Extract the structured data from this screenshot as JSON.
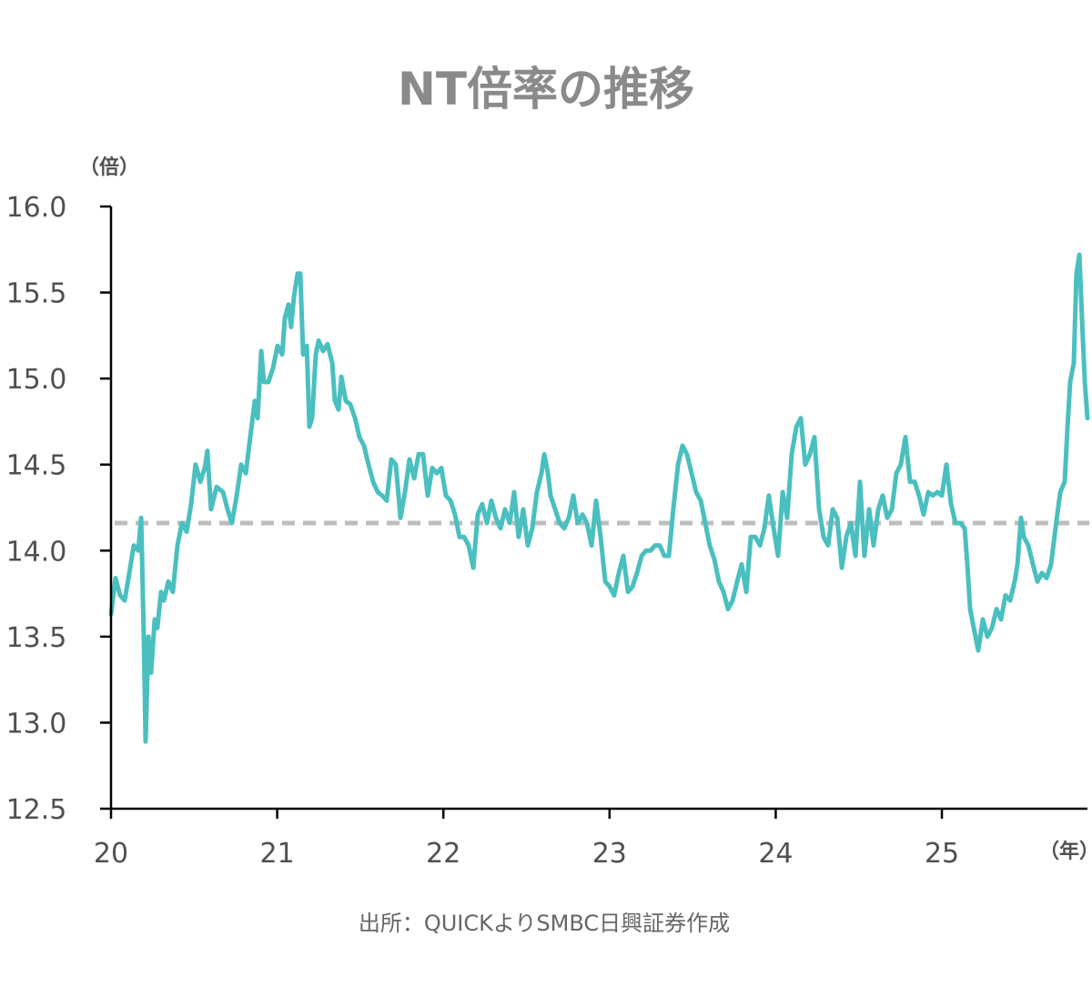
{
  "chart_data": {
    "type": "line",
    "title": "NT倍率の推移",
    "ylabel": "（倍）",
    "xlabel": "（年）",
    "source": "出所：QUICKよりSMBC日興証券作成",
    "ylim": [
      12.5,
      16.0
    ],
    "xlim": [
      20,
      25.876
    ],
    "yticks": [
      "12.5",
      "13.0",
      "13.5",
      "14.0",
      "14.5",
      "15.0",
      "15.5",
      "16.0"
    ],
    "xticks": [
      "20",
      "21",
      "22",
      "23",
      "24",
      "25"
    ],
    "grid": false,
    "reference_line": {
      "value": 14.16,
      "style": "dashed"
    },
    "colors": {
      "line": "#4bbfbf",
      "reference": "#bdbdbd",
      "axis": "#000000"
    },
    "series": [
      {
        "name": "NT倍率",
        "points": [
          [
            20.0,
            13.63
          ],
          [
            20.027,
            13.84
          ],
          [
            20.055,
            13.74
          ],
          [
            20.082,
            13.71
          ],
          [
            20.11,
            13.87
          ],
          [
            20.137,
            14.03
          ],
          [
            20.164,
            14.0
          ],
          [
            20.181,
            14.19
          ],
          [
            20.197,
            13.5
          ],
          [
            20.208,
            12.89
          ],
          [
            20.225,
            13.5
          ],
          [
            20.241,
            13.29
          ],
          [
            20.263,
            13.6
          ],
          [
            20.279,
            13.55
          ],
          [
            20.301,
            13.76
          ],
          [
            20.318,
            13.71
          ],
          [
            20.345,
            13.82
          ],
          [
            20.372,
            13.76
          ],
          [
            20.4,
            14.03
          ],
          [
            20.427,
            14.16
          ],
          [
            20.455,
            14.11
          ],
          [
            20.482,
            14.27
          ],
          [
            20.509,
            14.5
          ],
          [
            20.537,
            14.4
          ],
          [
            20.564,
            14.48
          ],
          [
            20.58,
            14.58
          ],
          [
            20.602,
            14.24
          ],
          [
            20.635,
            14.37
          ],
          [
            20.674,
            14.34
          ],
          [
            20.701,
            14.24
          ],
          [
            20.728,
            14.16
          ],
          [
            20.756,
            14.32
          ],
          [
            20.783,
            14.5
          ],
          [
            20.811,
            14.45
          ],
          [
            20.838,
            14.66
          ],
          [
            20.865,
            14.87
          ],
          [
            20.882,
            14.77
          ],
          [
            20.904,
            15.16
          ],
          [
            20.92,
            14.98
          ],
          [
            20.947,
            14.98
          ],
          [
            20.975,
            15.06
          ],
          [
            21.002,
            15.19
          ],
          [
            21.03,
            15.14
          ],
          [
            21.046,
            15.35
          ],
          [
            21.068,
            15.43
          ],
          [
            21.084,
            15.3
          ],
          [
            21.101,
            15.48
          ],
          [
            21.123,
            15.61
          ],
          [
            21.139,
            15.61
          ],
          [
            21.156,
            15.14
          ],
          [
            21.178,
            15.19
          ],
          [
            21.194,
            14.72
          ],
          [
            21.21,
            14.77
          ],
          [
            21.232,
            15.14
          ],
          [
            21.249,
            15.22
          ],
          [
            21.276,
            15.16
          ],
          [
            21.303,
            15.2
          ],
          [
            21.331,
            15.09
          ],
          [
            21.347,
            14.87
          ],
          [
            21.369,
            14.82
          ],
          [
            21.386,
            15.01
          ],
          [
            21.413,
            14.87
          ],
          [
            21.44,
            14.85
          ],
          [
            21.468,
            14.77
          ],
          [
            21.495,
            14.66
          ],
          [
            21.522,
            14.61
          ],
          [
            21.55,
            14.5
          ],
          [
            21.577,
            14.4
          ],
          [
            21.605,
            14.34
          ],
          [
            21.632,
            14.32
          ],
          [
            21.659,
            14.29
          ],
          [
            21.687,
            14.53
          ],
          [
            21.714,
            14.5
          ],
          [
            21.742,
            14.19
          ],
          [
            21.769,
            14.34
          ],
          [
            21.796,
            14.53
          ],
          [
            21.824,
            14.42
          ],
          [
            21.851,
            14.56
          ],
          [
            21.878,
            14.56
          ],
          [
            21.906,
            14.32
          ],
          [
            21.933,
            14.48
          ],
          [
            21.961,
            14.45
          ],
          [
            21.988,
            14.48
          ],
          [
            22.015,
            14.32
          ],
          [
            22.043,
            14.29
          ],
          [
            22.07,
            14.21
          ],
          [
            22.097,
            14.08
          ],
          [
            22.125,
            14.08
          ],
          [
            22.152,
            14.03
          ],
          [
            22.18,
            13.9
          ],
          [
            22.207,
            14.21
          ],
          [
            22.234,
            14.27
          ],
          [
            22.262,
            14.16
          ],
          [
            22.289,
            14.29
          ],
          [
            22.316,
            14.19
          ],
          [
            22.344,
            14.13
          ],
          [
            22.371,
            14.24
          ],
          [
            22.399,
            14.16
          ],
          [
            22.426,
            14.34
          ],
          [
            22.453,
            14.08
          ],
          [
            22.481,
            14.24
          ],
          [
            22.508,
            14.03
          ],
          [
            22.535,
            14.13
          ],
          [
            22.563,
            14.34
          ],
          [
            22.59,
            14.45
          ],
          [
            22.607,
            14.56
          ],
          [
            22.629,
            14.45
          ],
          [
            22.645,
            14.32
          ],
          [
            22.673,
            14.24
          ],
          [
            22.7,
            14.16
          ],
          [
            22.727,
            14.13
          ],
          [
            22.755,
            14.19
          ],
          [
            22.782,
            14.32
          ],
          [
            22.809,
            14.16
          ],
          [
            22.837,
            14.21
          ],
          [
            22.864,
            14.16
          ],
          [
            22.892,
            14.03
          ],
          [
            22.919,
            14.29
          ],
          [
            22.946,
            14.08
          ],
          [
            22.974,
            13.82
          ],
          [
            23.001,
            13.79
          ],
          [
            23.028,
            13.74
          ],
          [
            23.056,
            13.87
          ],
          [
            23.083,
            13.97
          ],
          [
            23.111,
            13.76
          ],
          [
            23.138,
            13.79
          ],
          [
            23.165,
            13.87
          ],
          [
            23.193,
            13.97
          ],
          [
            23.22,
            14.0
          ],
          [
            23.247,
            14.0
          ],
          [
            23.275,
            14.03
          ],
          [
            23.302,
            14.03
          ],
          [
            23.33,
            13.97
          ],
          [
            23.357,
            13.97
          ],
          [
            23.384,
            14.24
          ],
          [
            23.412,
            14.5
          ],
          [
            23.439,
            14.61
          ],
          [
            23.466,
            14.56
          ],
          [
            23.494,
            14.45
          ],
          [
            23.521,
            14.34
          ],
          [
            23.549,
            14.29
          ],
          [
            23.576,
            14.16
          ],
          [
            23.603,
            14.03
          ],
          [
            23.631,
            13.95
          ],
          [
            23.658,
            13.82
          ],
          [
            23.686,
            13.76
          ],
          [
            23.713,
            13.66
          ],
          [
            23.74,
            13.71
          ],
          [
            23.768,
            13.82
          ],
          [
            23.795,
            13.92
          ],
          [
            23.823,
            13.76
          ],
          [
            23.85,
            14.08
          ],
          [
            23.877,
            14.08
          ],
          [
            23.905,
            14.03
          ],
          [
            23.932,
            14.13
          ],
          [
            23.959,
            14.32
          ],
          [
            23.987,
            14.13
          ],
          [
            24.014,
            13.97
          ],
          [
            24.042,
            14.34
          ],
          [
            24.069,
            14.19
          ],
          [
            24.096,
            14.56
          ],
          [
            24.124,
            14.72
          ],
          [
            24.151,
            14.77
          ],
          [
            24.178,
            14.5
          ],
          [
            24.206,
            14.56
          ],
          [
            24.233,
            14.66
          ],
          [
            24.261,
            14.24
          ],
          [
            24.288,
            14.08
          ],
          [
            24.315,
            14.03
          ],
          [
            24.343,
            14.24
          ],
          [
            24.37,
            14.19
          ],
          [
            24.398,
            13.9
          ],
          [
            24.425,
            14.08
          ],
          [
            24.452,
            14.16
          ],
          [
            24.48,
            13.97
          ],
          [
            24.507,
            14.4
          ],
          [
            24.534,
            13.97
          ],
          [
            24.562,
            14.24
          ],
          [
            24.589,
            14.03
          ],
          [
            24.617,
            14.24
          ],
          [
            24.644,
            14.32
          ],
          [
            24.671,
            14.19
          ],
          [
            24.699,
            14.24
          ],
          [
            24.726,
            14.45
          ],
          [
            24.753,
            14.5
          ],
          [
            24.781,
            14.66
          ],
          [
            24.808,
            14.4
          ],
          [
            24.836,
            14.4
          ],
          [
            24.863,
            14.32
          ],
          [
            24.89,
            14.21
          ],
          [
            24.918,
            14.34
          ],
          [
            24.945,
            14.32
          ],
          [
            24.973,
            14.34
          ],
          [
            25.0,
            14.32
          ],
          [
            25.027,
            14.5
          ],
          [
            25.055,
            14.27
          ],
          [
            25.082,
            14.16
          ],
          [
            25.11,
            14.16
          ],
          [
            25.137,
            14.13
          ],
          [
            25.153,
            13.92
          ],
          [
            25.17,
            13.66
          ],
          [
            25.192,
            13.55
          ],
          [
            25.219,
            13.42
          ],
          [
            25.246,
            13.6
          ],
          [
            25.274,
            13.5
          ],
          [
            25.301,
            13.55
          ],
          [
            25.329,
            13.66
          ],
          [
            25.356,
            13.6
          ],
          [
            25.383,
            13.74
          ],
          [
            25.411,
            13.71
          ],
          [
            25.438,
            13.82
          ],
          [
            25.455,
            13.92
          ],
          [
            25.476,
            14.19
          ],
          [
            25.493,
            14.08
          ],
          [
            25.52,
            14.03
          ],
          [
            25.548,
            13.92
          ],
          [
            25.575,
            13.82
          ],
          [
            25.602,
            13.87
          ],
          [
            25.63,
            13.84
          ],
          [
            25.657,
            13.92
          ],
          [
            25.684,
            14.13
          ],
          [
            25.712,
            14.34
          ],
          [
            25.739,
            14.4
          ],
          [
            25.756,
            14.72
          ],
          [
            25.772,
            14.98
          ],
          [
            25.794,
            15.09
          ],
          [
            25.81,
            15.61
          ],
          [
            25.827,
            15.72
          ],
          [
            25.843,
            15.35
          ],
          [
            25.86,
            14.98
          ],
          [
            25.876,
            14.77
          ]
        ]
      }
    ]
  }
}
